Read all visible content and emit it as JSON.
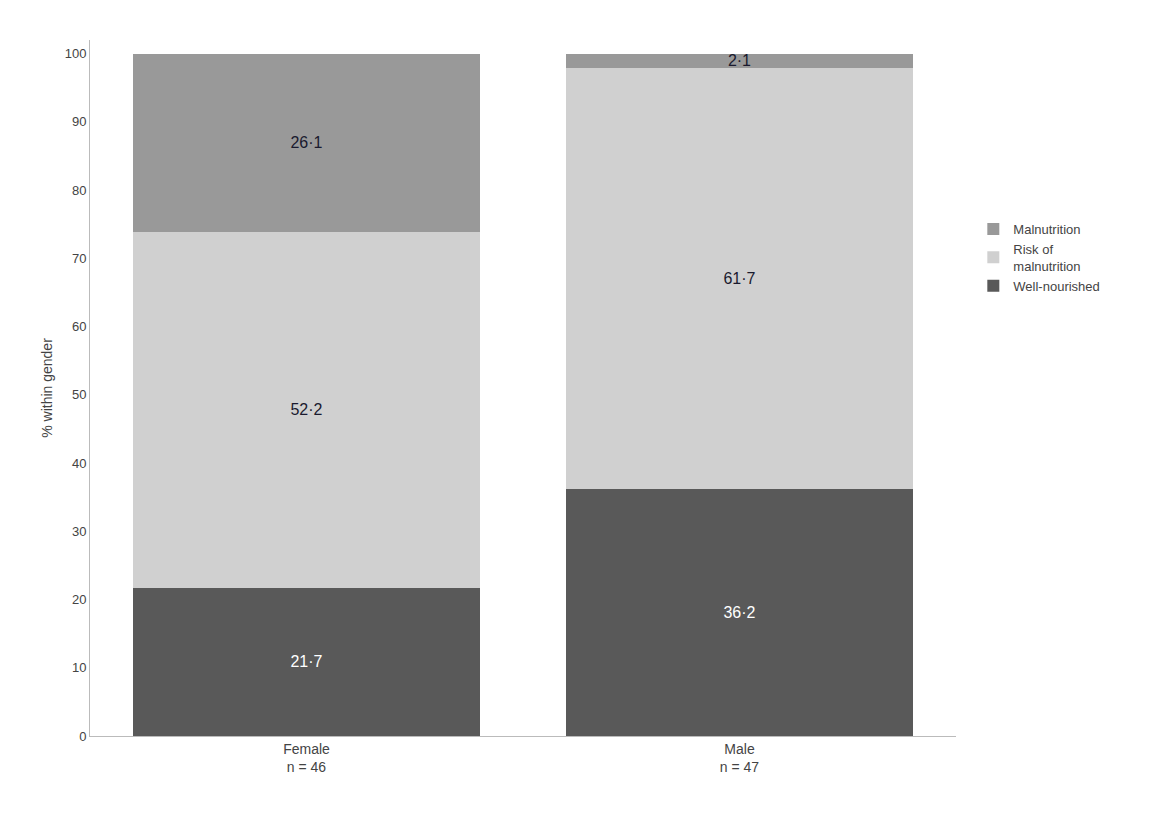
{
  "chart_data": {
    "type": "bar",
    "stacked": true,
    "data_labels": true,
    "grid": false,
    "legend": "right",
    "ylabel": "% within gender",
    "categories": [
      "Female\nn = 46",
      "Male\nn = 47"
    ],
    "ylim": [
      0,
      102
    ],
    "yticks": [
      0,
      10,
      20,
      30,
      40,
      50,
      60,
      70,
      80,
      90,
      100
    ],
    "series": [
      {
        "name": "Well-nourished",
        "color": "#595959",
        "values": [
          21.7,
          36.2
        ],
        "value_labels": [
          "21·7",
          "36·2"
        ]
      },
      {
        "name": "Risk of\nmalnutrition",
        "color": "#d0d0d0",
        "values": [
          52.2,
          61.7
        ],
        "value_labels": [
          "52·2",
          "61·7"
        ]
      },
      {
        "name": "Malnutrition",
        "color": "#999999",
        "values": [
          26.1,
          2.1
        ],
        "value_labels": [
          "26·1",
          "2·1"
        ]
      }
    ]
  }
}
